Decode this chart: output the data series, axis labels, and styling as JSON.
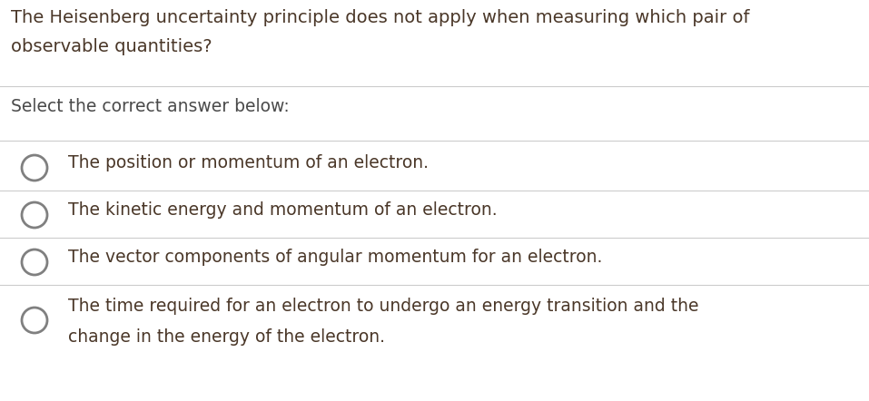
{
  "background_color": "#ffffff",
  "question_text_line1": "The Heisenberg uncertainty principle does not apply when measuring which pair of",
  "question_text_line2": "observable quantities?",
  "instruction_text": "Select the correct answer below:",
  "options_line1": [
    "The position or momentum of an electron.",
    "The kinetic energy and momentum of an electron.",
    "The vector components of angular momentum for an electron.",
    "The time required for an electron to undergo an energy transition and the"
  ],
  "option4_line2": "change in the energy of the electron.",
  "question_color": "#4a3728",
  "instruction_color": "#4a4a4a",
  "option_color": "#4a3728",
  "divider_color": "#cccccc",
  "circle_edge_color": "#808080",
  "circle_face_color": "#ffffff",
  "question_fontsize": 14.0,
  "instruction_fontsize": 13.5,
  "option_fontsize": 13.5,
  "font_family": "DejaVu Sans",
  "fig_width": 9.57,
  "fig_height": 4.42,
  "dpi": 100
}
